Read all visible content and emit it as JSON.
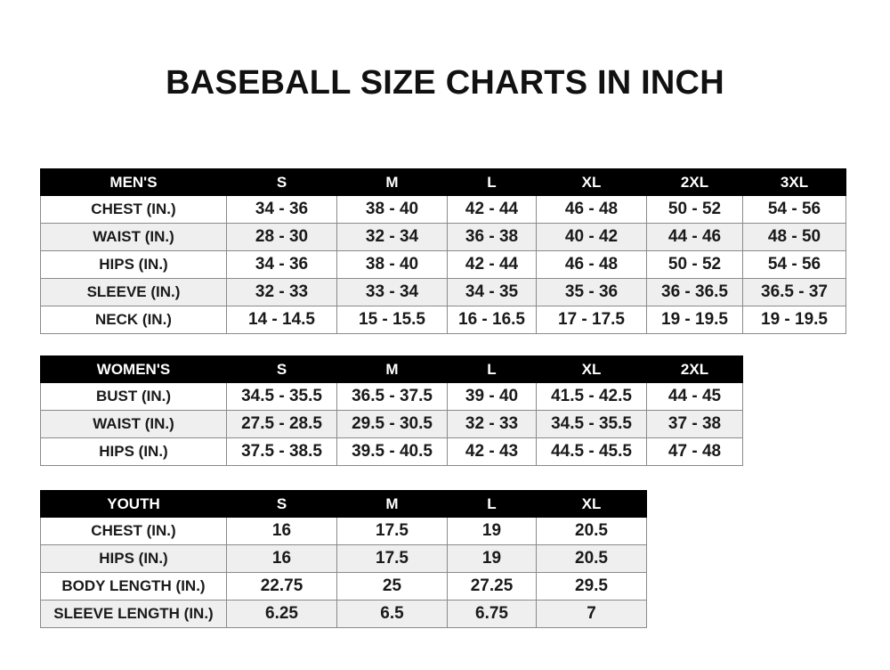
{
  "title": "BASEBALL SIZE CHARTS IN INCH",
  "tables": [
    {
      "header": [
        "MEN'S",
        "S",
        "M",
        "L",
        "XL",
        "2XL",
        "3XL"
      ],
      "rows": [
        [
          "CHEST (IN.)",
          "34 - 36",
          "38 - 40",
          "42 - 44",
          "46 - 48",
          "50 - 52",
          "54 - 56"
        ],
        [
          "WAIST (IN.)",
          "28 - 30",
          "32 - 34",
          "36 - 38",
          "40 - 42",
          "44 - 46",
          "48 - 50"
        ],
        [
          "HIPS (IN.)",
          "34 - 36",
          "38 - 40",
          "42 - 44",
          "46 - 48",
          "50 - 52",
          "54 - 56"
        ],
        [
          "SLEEVE (IN.)",
          "32 - 33",
          "33 - 34",
          "34 - 35",
          "35 - 36",
          "36 - 36.5",
          "36.5 - 37"
        ],
        [
          "NECK (IN.)",
          "14 - 14.5",
          "15 - 15.5",
          "16 - 16.5",
          "17 - 17.5",
          "19 - 19.5",
          "19 - 19.5"
        ]
      ]
    },
    {
      "header": [
        "WOMEN'S",
        "S",
        "M",
        "L",
        "XL",
        "2XL"
      ],
      "rows": [
        [
          "BUST (IN.)",
          "34.5 - 35.5",
          "36.5 - 37.5",
          "39 - 40",
          "41.5 - 42.5",
          "44 - 45"
        ],
        [
          "WAIST (IN.)",
          "27.5 - 28.5",
          "29.5 - 30.5",
          "32 - 33",
          "34.5 - 35.5",
          "37 - 38"
        ],
        [
          "HIPS (IN.)",
          "37.5 - 38.5",
          "39.5 - 40.5",
          "42 - 43",
          "44.5 - 45.5",
          "47 - 48"
        ]
      ]
    },
    {
      "header": [
        "YOUTH",
        "S",
        "M",
        "L",
        "XL"
      ],
      "rows": [
        [
          "CHEST (IN.)",
          "16",
          "17.5",
          "19",
          "20.5"
        ],
        [
          "HIPS (IN.)",
          "16",
          "17.5",
          "19",
          "20.5"
        ],
        [
          "BODY LENGTH (IN.)",
          "22.75",
          "25",
          "27.25",
          "29.5"
        ],
        [
          "SLEEVE LENGTH (IN.)",
          "6.25",
          "6.5",
          "6.75",
          "7"
        ]
      ]
    }
  ],
  "colors": {
    "header_bg": "#000000",
    "header_text": "#ffffff",
    "alt_row": "#efefef",
    "border": "#8a8a8a"
  }
}
